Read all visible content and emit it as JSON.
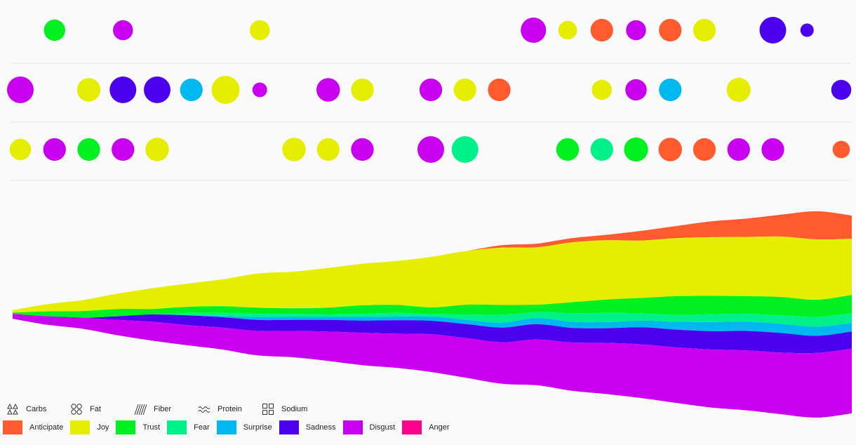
{
  "colors": {
    "anticipate": "#ff5b2f",
    "joy": "#e5ee00",
    "trust": "#00f020",
    "fear": "#00f08a",
    "surprise": "#00b8f0",
    "sadness": "#4b00ee",
    "disgust": "#c800ef",
    "anger": "#ff008c"
  },
  "legend": {
    "nutrients": [
      {
        "label": "Carbs",
        "icon": "triangles-icon"
      },
      {
        "label": "Fat",
        "icon": "circles-icon"
      },
      {
        "label": "Fiber",
        "icon": "hatch-icon"
      },
      {
        "label": "Protein",
        "icon": "waves-icon"
      },
      {
        "label": "Sodium",
        "icon": "squares-icon"
      }
    ],
    "emotions": [
      {
        "key": "anticipate",
        "label": "Anticipate"
      },
      {
        "key": "joy",
        "label": "Joy"
      },
      {
        "key": "trust",
        "label": "Trust"
      },
      {
        "key": "fear",
        "label": "Fear"
      },
      {
        "key": "surprise",
        "label": "Surprise"
      },
      {
        "key": "sadness",
        "label": "Sadness"
      },
      {
        "key": "disgust",
        "label": "Disgust"
      },
      {
        "key": "anger",
        "label": "Anger"
      }
    ]
  },
  "chart_data": [
    {
      "type": "scatter",
      "rows": [
        [
          {
            "i": 1,
            "e": "trust",
            "s": 0.8
          },
          {
            "i": 3,
            "e": "disgust",
            "s": 0.75
          },
          {
            "i": 7,
            "e": "joy",
            "s": 0.75
          },
          {
            "i": 15,
            "e": "disgust",
            "s": 0.95
          },
          {
            "i": 16,
            "e": "joy",
            "s": 0.7
          },
          {
            "i": 17,
            "e": "anticipate",
            "s": 0.85
          },
          {
            "i": 18,
            "e": "disgust",
            "s": 0.75
          },
          {
            "i": 19,
            "e": "anticipate",
            "s": 0.85
          },
          {
            "i": 20,
            "e": "joy",
            "s": 0.85
          },
          {
            "i": 22,
            "e": "sadness",
            "s": 1.0
          },
          {
            "i": 23,
            "e": "sadness",
            "s": 0.5
          }
        ],
        [
          {
            "i": 0,
            "e": "disgust",
            "s": 1.0
          },
          {
            "i": 2,
            "e": "joy",
            "s": 0.88
          },
          {
            "i": 3,
            "e": "sadness",
            "s": 1.0
          },
          {
            "i": 4,
            "e": "sadness",
            "s": 1.0
          },
          {
            "i": 5,
            "e": "surprise",
            "s": 0.85
          },
          {
            "i": 6,
            "e": "joy",
            "s": 1.05
          },
          {
            "i": 7,
            "e": "disgust",
            "s": 0.55
          },
          {
            "i": 9,
            "e": "disgust",
            "s": 0.88
          },
          {
            "i": 10,
            "e": "joy",
            "s": 0.85
          },
          {
            "i": 12,
            "e": "disgust",
            "s": 0.85
          },
          {
            "i": 13,
            "e": "joy",
            "s": 0.85
          },
          {
            "i": 14,
            "e": "anticipate",
            "s": 0.85
          },
          {
            "i": 17,
            "e": "joy",
            "s": 0.75
          },
          {
            "i": 18,
            "e": "disgust",
            "s": 0.8
          },
          {
            "i": 19,
            "e": "surprise",
            "s": 0.85
          },
          {
            "i": 21,
            "e": "joy",
            "s": 0.9
          },
          {
            "i": 24,
            "e": "sadness",
            "s": 0.75
          }
        ],
        [
          {
            "i": 0,
            "e": "joy",
            "s": 0.8
          },
          {
            "i": 1,
            "e": "disgust",
            "s": 0.85
          },
          {
            "i": 2,
            "e": "trust",
            "s": 0.85
          },
          {
            "i": 3,
            "e": "disgust",
            "s": 0.85
          },
          {
            "i": 4,
            "e": "joy",
            "s": 0.88
          },
          {
            "i": 8,
            "e": "joy",
            "s": 0.88
          },
          {
            "i": 9,
            "e": "joy",
            "s": 0.85
          },
          {
            "i": 10,
            "e": "disgust",
            "s": 0.85
          },
          {
            "i": 12,
            "e": "disgust",
            "s": 1.0
          },
          {
            "i": 13,
            "e": "fear",
            "s": 1.0
          },
          {
            "i": 16,
            "e": "trust",
            "s": 0.85
          },
          {
            "i": 17,
            "e": "fear",
            "s": 0.85
          },
          {
            "i": 18,
            "e": "trust",
            "s": 0.9
          },
          {
            "i": 19,
            "e": "anticipate",
            "s": 0.88
          },
          {
            "i": 20,
            "e": "anticipate",
            "s": 0.85
          },
          {
            "i": 21,
            "e": "disgust",
            "s": 0.85
          },
          {
            "i": 22,
            "e": "disgust",
            "s": 0.85
          },
          {
            "i": 24,
            "e": "anticipate",
            "s": 0.65
          }
        ]
      ]
    },
    {
      "type": "area",
      "stacked": true,
      "baseline": "centered",
      "x_count": 25,
      "series": [
        {
          "key": "anticipate",
          "name": "Anticipate",
          "values": [
            0,
            0,
            0,
            0,
            0,
            0,
            0,
            0,
            0,
            0,
            0,
            0,
            0,
            0,
            0.4,
            0.6,
            0.7,
            0.9,
            1.6,
            2.0,
            2.6,
            3.0,
            3.6,
            4.6,
            3.8
          ]
        },
        {
          "key": "joy",
          "name": "Joy",
          "values": [
            0.4,
            1.2,
            1.8,
            2.5,
            3.4,
            3.8,
            4.4,
            5.6,
            6.0,
            6.5,
            6.8,
            7.2,
            8.3,
            8.8,
            9.4,
            9.4,
            9.8,
            9.7,
            9.4,
            9.5,
            9.6,
            9.7,
            9.9,
            9.9,
            9.2
          ]
        },
        {
          "key": "trust",
          "name": "Trust",
          "values": [
            0.2,
            0.8,
            1.1,
            1.2,
            0.9,
            1.0,
            1.1,
            1.0,
            0.9,
            1.1,
            1.4,
            1.3,
            1.1,
            1.6,
            1.6,
            1.2,
            1.8,
            2.2,
            2.5,
            3.1,
            3.0,
            2.9,
            3.0,
            2.8,
            3.0
          ]
        },
        {
          "key": "fear",
          "name": "Fear",
          "values": [
            0,
            0,
            0,
            0,
            0,
            0.4,
            0.5,
            0.5,
            0.5,
            0.4,
            0.5,
            0.6,
            0.4,
            0.9,
            1.3,
            1.0,
            1.4,
            1.5,
            1.2,
            1.1,
            1.3,
            1.3,
            1.4,
            1.6,
            1.6
          ]
        },
        {
          "key": "surprise",
          "name": "Surprise",
          "values": [
            0,
            0,
            0,
            0,
            0,
            0,
            0.2,
            0.5,
            0.5,
            0.5,
            0.6,
            0.6,
            0.7,
            0.7,
            0.8,
            1.0,
            1.0,
            1.0,
            1.1,
            1.3,
            1.5,
            1.5,
            1.5,
            1.5,
            1.4
          ]
        },
        {
          "key": "sadness",
          "name": "Sadness",
          "values": [
            0,
            0,
            0,
            0.6,
            1.2,
            1.6,
            1.7,
            1.8,
            1.8,
            1.9,
            2.0,
            2.2,
            2.2,
            2.3,
            2.4,
            2.5,
            2.4,
            2.4,
            2.8,
            2.9,
            3.0,
            3.2,
            3.2,
            2.8,
            2.8
          ]
        },
        {
          "key": "disgust",
          "name": "Disgust",
          "values": [
            0.8,
            1.4,
            1.8,
            2.5,
            3.1,
            3.3,
            3.6,
            4.0,
            4.3,
            4.8,
            5.3,
            5.6,
            6.2,
            6.5,
            6.8,
            7.5,
            7.9,
            8.4,
            8.8,
            9.1,
            9.5,
            9.8,
            10.1,
            10.6,
            10.6
          ]
        },
        {
          "key": "anger",
          "name": "Anger",
          "values": [
            0,
            0,
            0,
            0,
            0,
            0,
            0,
            0,
            0,
            0,
            0,
            0,
            0,
            0,
            0,
            0,
            0,
            0,
            0,
            0,
            0,
            0,
            0,
            0,
            0
          ]
        }
      ]
    }
  ]
}
